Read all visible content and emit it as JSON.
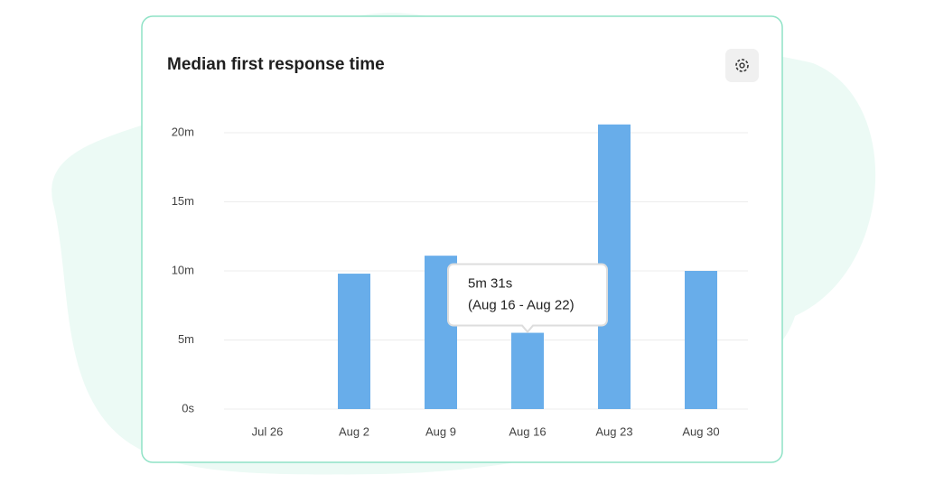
{
  "chart_data": {
    "type": "bar",
    "title": "Median first response time",
    "categories": [
      "Jul 26",
      "Aug 2",
      "Aug 9",
      "Aug 16",
      "Aug 23",
      "Aug 30"
    ],
    "values": [
      null,
      9.8,
      11.1,
      5.52,
      20.6,
      10.0
    ],
    "value_labels": [
      null,
      null,
      null,
      "5m 31s",
      null,
      null
    ],
    "tooltip_range": "(Aug 16 - Aug 22)",
    "color": "#68adea",
    "ylim": [
      0,
      20
    ],
    "yticks": [
      {
        "value": 0,
        "label": "0s"
      },
      {
        "value": 5,
        "label": "5m"
      },
      {
        "value": 10,
        "label": "10m"
      },
      {
        "value": 15,
        "label": "15m"
      },
      {
        "value": 20,
        "label": "20m"
      }
    ],
    "grid": true
  }
}
